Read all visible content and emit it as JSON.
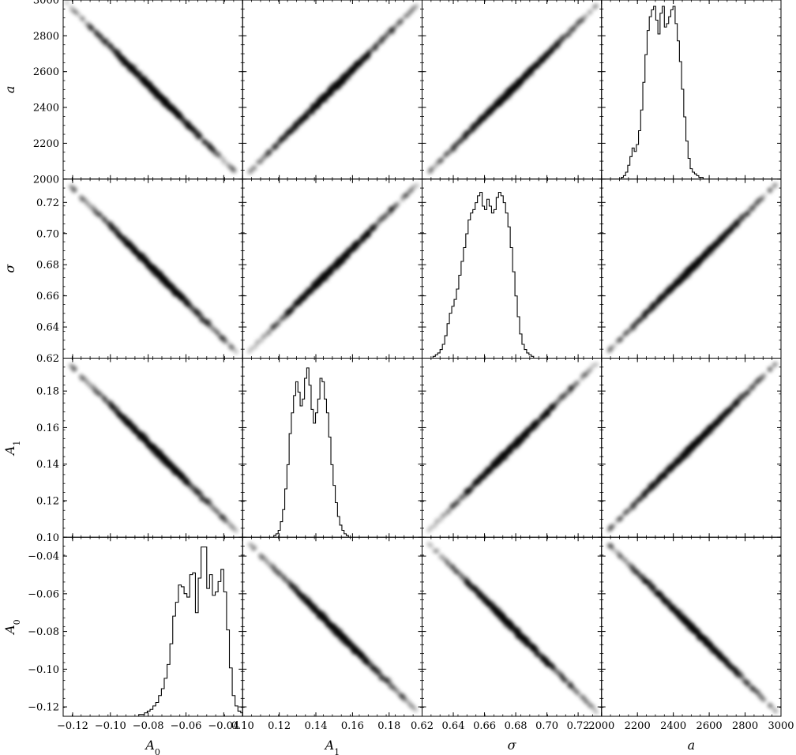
{
  "chart_data": {
    "type": "scatter",
    "layout": "corner-plot-grid",
    "grid_rows": 4,
    "grid_cols": 4,
    "title": "",
    "grid": false,
    "parameters": [
      {
        "id": "A0",
        "label": "A",
        "subscript": "0",
        "lim": [
          -0.125,
          -0.03
        ],
        "ticks": [
          -0.12,
          -0.1,
          -0.08,
          -0.06,
          -0.04
        ],
        "tick_labels": [
          "−0.12",
          "−0.10",
          "−0.08",
          "−0.06",
          "−0.04"
        ],
        "side_tick_labels": [
          "−0.12",
          "−0.10",
          "−0.08",
          "−0.06",
          "−0.04"
        ]
      },
      {
        "id": "A1",
        "label": "A",
        "subscript": "1",
        "lim": [
          0.1,
          0.198
        ],
        "ticks": [
          0.1,
          0.12,
          0.14,
          0.16,
          0.18
        ],
        "tick_labels": [
          "0.10",
          "0.12",
          "0.14",
          "0.16",
          "0.18"
        ],
        "side_tick_labels": [
          "0.10",
          "0.12",
          "0.14",
          "0.16",
          "0.18"
        ]
      },
      {
        "id": "sigma",
        "label": "σ",
        "subscript": "",
        "lim": [
          0.62,
          0.735
        ],
        "ticks": [
          0.62,
          0.64,
          0.66,
          0.68,
          0.7,
          0.72
        ],
        "tick_labels": [
          "0.62",
          "0.64",
          "0.66",
          "0.68",
          "0.70",
          "0.72"
        ],
        "side_tick_labels": [
          "0.62",
          "0.64",
          "0.66",
          "0.68",
          "0.70",
          "0.72"
        ]
      },
      {
        "id": "a",
        "label": "a",
        "subscript": "",
        "lim": [
          2000,
          3000
        ],
        "ticks": [
          2000,
          2200,
          2400,
          2600,
          2800,
          3000
        ],
        "tick_labels": [
          "2000",
          "2200",
          "2400",
          "2600",
          "2800",
          "3000"
        ],
        "side_tick_labels": [
          "2000",
          "2200",
          "2400",
          "2600",
          "2800",
          "3000"
        ]
      }
    ],
    "row_order": [
      "a",
      "sigma",
      "A1",
      "A0"
    ],
    "col_order": [
      "A0",
      "A1",
      "sigma",
      "a"
    ],
    "correlations": {
      "A0|A1": "negative",
      "A0|sigma": "negative",
      "A0|a": "negative",
      "A1|sigma": "positive",
      "A1|a": "positive",
      "sigma|a": "positive"
    },
    "histograms": {
      "A0": {
        "x0": -0.085,
        "dx": 0.0015,
        "counts": [
          0.01,
          0.01,
          0.02,
          0.03,
          0.04,
          0.06,
          0.08,
          0.12,
          0.16,
          0.22,
          0.3,
          0.42,
          0.58,
          0.66,
          0.76,
          0.75,
          0.71,
          0.69,
          0.82,
          0.83,
          0.6,
          0.8,
          0.98,
          0.98,
          0.74,
          0.82,
          0.7,
          0.72,
          0.78,
          0.85,
          0.72,
          0.5,
          0.28,
          0.12,
          0.06,
          0.03,
          0.02,
          0.01
        ]
      },
      "A1": {
        "x0": 0.117,
        "dx": 0.0012,
        "counts": [
          0.01,
          0.02,
          0.04,
          0.09,
          0.16,
          0.28,
          0.42,
          0.6,
          0.72,
          0.82,
          0.9,
          0.84,
          0.76,
          0.8,
          0.92,
          0.98,
          0.88,
          0.74,
          0.66,
          0.72,
          0.8,
          0.92,
          0.9,
          0.8,
          0.72,
          0.58,
          0.42,
          0.3,
          0.2,
          0.12,
          0.07,
          0.04,
          0.02,
          0.01
        ]
      },
      "sigma": {
        "x0": 0.627,
        "dx": 0.0015,
        "counts": [
          0.01,
          0.02,
          0.03,
          0.05,
          0.08,
          0.13,
          0.2,
          0.26,
          0.3,
          0.34,
          0.4,
          0.48,
          0.56,
          0.64,
          0.72,
          0.8,
          0.84,
          0.86,
          0.9,
          0.94,
          0.96,
          0.88,
          0.86,
          0.92,
          0.88,
          0.84,
          0.86,
          0.93,
          0.96,
          0.94,
          0.9,
          0.84,
          0.76,
          0.64,
          0.5,
          0.36,
          0.24,
          0.14,
          0.08,
          0.05,
          0.03,
          0.02,
          0.01
        ]
      },
      "a": {
        "x0": 2110,
        "dx": 12,
        "counts": [
          0.01,
          0.02,
          0.04,
          0.08,
          0.13,
          0.18,
          0.16,
          0.2,
          0.28,
          0.4,
          0.56,
          0.72,
          0.86,
          0.94,
          0.98,
          1.0,
          0.92,
          0.84,
          0.96,
          1.0,
          0.88,
          0.9,
          0.94,
          0.98,
          1.0,
          0.9,
          0.8,
          0.68,
          0.52,
          0.36,
          0.22,
          0.12,
          0.06,
          0.04,
          0.03,
          0.02,
          0.01,
          0.01
        ]
      }
    }
  }
}
